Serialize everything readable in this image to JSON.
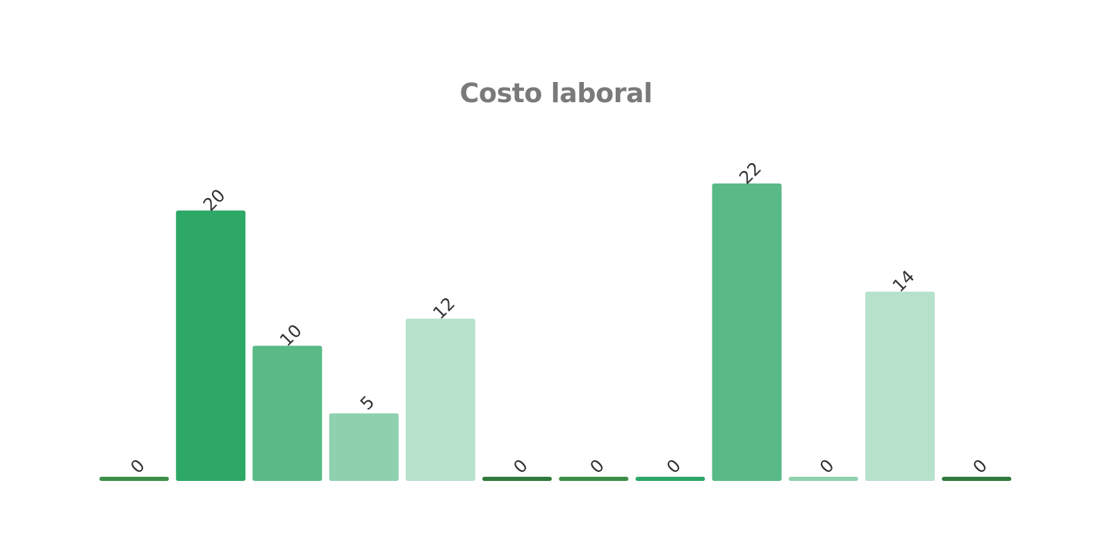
{
  "chart_data": {
    "type": "bar",
    "title": "Costo laboral",
    "categories": [
      "",
      "",
      "",
      "",
      "",
      "",
      "",
      "",
      "",
      "",
      "",
      ""
    ],
    "values": [
      0,
      20,
      10,
      5,
      12,
      0,
      0,
      0,
      22,
      0,
      14,
      0
    ],
    "colors": [
      "#3d8f48",
      "#2ea867",
      "#5aba87",
      "#8fd0ae",
      "#b7e1cb",
      "#2f7a3a",
      "#3d8f48",
      "#2ea867",
      "#5aba87",
      "#8fd0ae",
      "#b7e1cb",
      "#2f7a3a"
    ],
    "ylim": [
      0,
      22
    ],
    "grid": false,
    "legend": "none",
    "data_labels": true
  }
}
